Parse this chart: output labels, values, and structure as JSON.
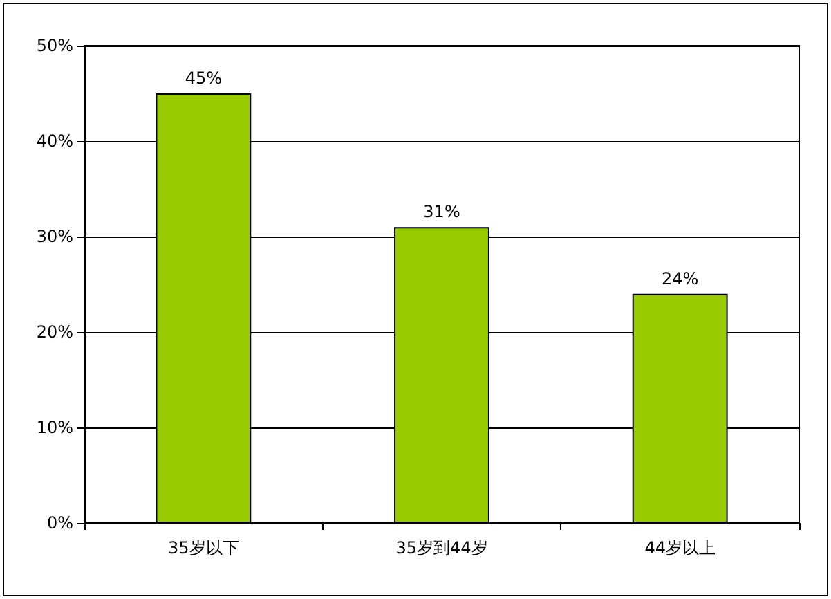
{
  "chart_data": {
    "type": "bar",
    "categories": [
      "35岁以下",
      "35岁到44岁",
      "44岁以上"
    ],
    "values": [
      45,
      31,
      24
    ],
    "color": "#99cc00",
    "value_labels": [
      "45%",
      "31%",
      "24%"
    ],
    "ylim": [
      0,
      50
    ],
    "yticks": [
      {
        "value": 0,
        "label": "0%"
      },
      {
        "value": 10,
        "label": "10%"
      },
      {
        "value": 20,
        "label": "20%"
      },
      {
        "value": 30,
        "label": "30%"
      },
      {
        "value": 40,
        "label": "40%"
      },
      {
        "value": 50,
        "label": "50%"
      }
    ],
    "grid": "y"
  }
}
